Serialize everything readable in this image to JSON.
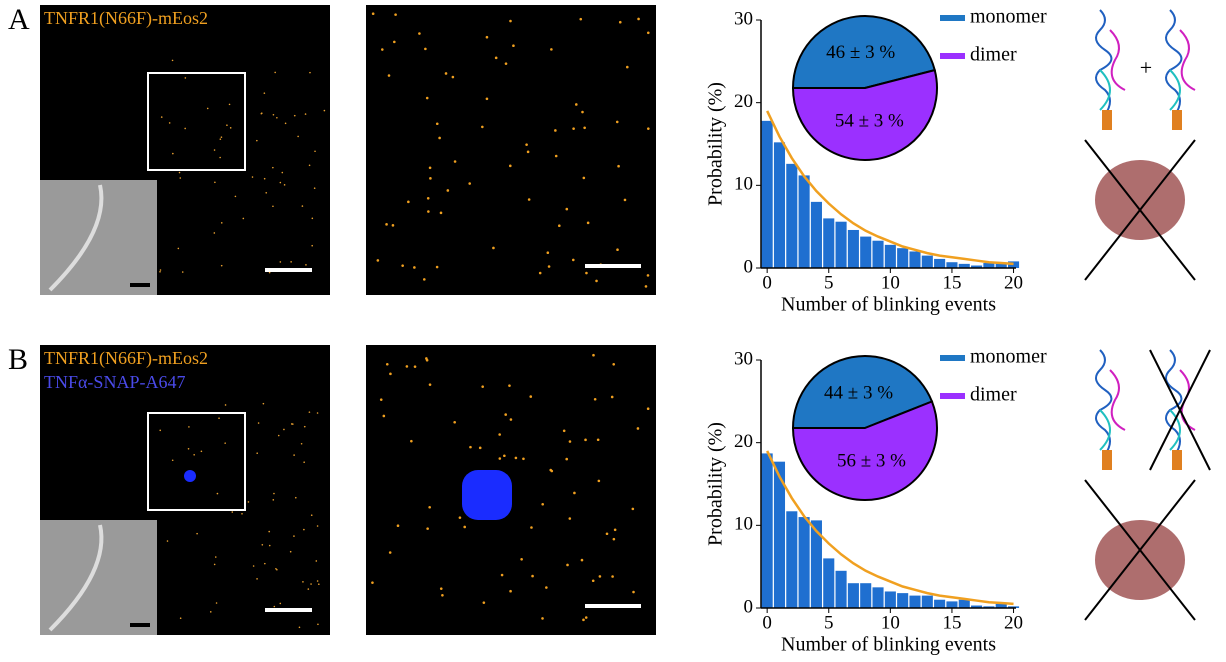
{
  "panels": [
    {
      "letter": "A",
      "labels": [
        {
          "text": "TNFR1(N66F)-mEos2",
          "color": "#f0a020"
        }
      ]
    },
    {
      "letter": "B",
      "labels": [
        {
          "text": "TNFR1(N66F)-mEos2",
          "color": "#f0a020"
        },
        {
          "text": "TNFα-SNAP-A647",
          "color": "#4a4ae8"
        }
      ]
    }
  ],
  "chart_data": [
    {
      "type": "bar",
      "x": [
        0,
        1,
        2,
        3,
        4,
        5,
        6,
        7,
        8,
        9,
        10,
        11,
        12,
        13,
        14,
        15,
        16,
        17,
        18,
        19,
        20
      ],
      "values": [
        17.8,
        15.2,
        12.6,
        11.2,
        8,
        6,
        5.6,
        4.6,
        3.8,
        3.3,
        2.8,
        2.4,
        2,
        1.5,
        1.1,
        0.7,
        0.5,
        0.3,
        0.6,
        0.6,
        0.8
      ],
      "color": "#1f6fd0",
      "line_values": [
        19,
        15.9,
        13.3,
        11.1,
        9.3,
        7.8,
        6.5,
        5.4,
        4.5,
        3.8,
        3.2,
        2.6,
        2.2,
        1.8,
        1.5,
        1.3,
        1.1,
        0.9,
        0.7,
        0.6,
        0.5
      ],
      "line_color": "#f0a020",
      "xlim": [
        -0.5,
        20.2
      ],
      "xticks": [
        0,
        5,
        10,
        15,
        20
      ],
      "ylim": [
        0,
        30
      ],
      "yticks": [
        0,
        10,
        20,
        30
      ],
      "x_label": "Number of blinking events",
      "y_label": "Probability (%)"
    },
    {
      "type": "pie",
      "series": [
        {
          "name": "monomer",
          "color": "#1f77c4",
          "values": [
            46
          ],
          "value_labels": [
            "46 ± 3 %"
          ]
        },
        {
          "name": "dimer",
          "color": "#9b30ff",
          "values": [
            54
          ],
          "value_labels": [
            "54 ± 3 %"
          ]
        }
      ]
    },
    {
      "type": "bar",
      "x": [
        0,
        1,
        2,
        3,
        4,
        5,
        6,
        7,
        8,
        9,
        10,
        11,
        12,
        13,
        14,
        15,
        16,
        17,
        18,
        19,
        20
      ],
      "values": [
        18.7,
        17.7,
        11.7,
        11,
        10.6,
        6,
        4.5,
        3,
        3,
        2.5,
        2,
        1.8,
        1.5,
        1.5,
        1,
        0.8,
        1,
        0.3,
        0.2,
        0.5,
        0.2
      ],
      "color": "#1f6fd0",
      "line_values": [
        19,
        15.9,
        13.3,
        11.1,
        9.3,
        7.8,
        6.5,
        5.4,
        4.5,
        3.8,
        3.2,
        2.6,
        2.2,
        1.8,
        1.5,
        1.3,
        1.1,
        0.9,
        0.7,
        0.6,
        0.5
      ],
      "line_color": "#f0a020",
      "xlim": [
        -0.5,
        20.2
      ],
      "xticks": [
        0,
        5,
        10,
        15,
        20
      ],
      "ylim": [
        0,
        30
      ],
      "yticks": [
        0,
        10,
        20,
        30
      ],
      "x_label": "Number of blinking events",
      "y_label": "Probability (%)"
    },
    {
      "type": "pie",
      "series": [
        {
          "name": "monomer",
          "color": "#1f77c4",
          "values": [
            44
          ],
          "value_labels": [
            "44 ± 3 %"
          ]
        },
        {
          "name": "dimer",
          "color": "#9b30ff",
          "values": [
            56
          ],
          "value_labels": [
            "56 ± 3 %"
          ]
        }
      ]
    }
  ]
}
